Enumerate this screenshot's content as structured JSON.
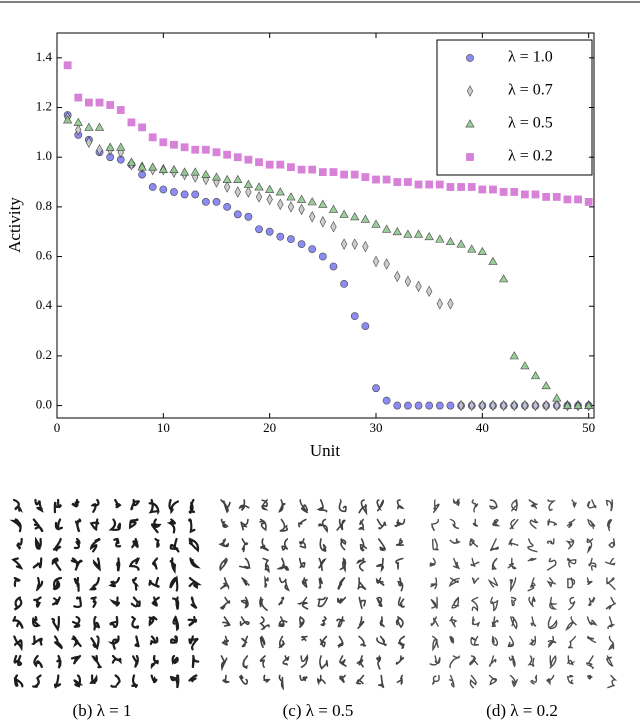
{
  "chart_data": {
    "type": "scatter",
    "xlabel": "Unit",
    "ylabel": "Activity",
    "xlim": [
      0,
      50.5
    ],
    "ylim": [
      -0.05,
      1.5
    ],
    "xticks": [
      0,
      10,
      20,
      30,
      40,
      50
    ],
    "yticks": [
      {
        "value": 0,
        "label": "0.0"
      },
      0.2,
      0.4,
      0.6,
      0.8,
      {
        "value": 1,
        "label": "1.0"
      },
      1.2,
      1.4
    ],
    "legend": "upper right",
    "x": [
      1,
      2,
      3,
      4,
      5,
      6,
      7,
      8,
      9,
      10,
      11,
      12,
      13,
      14,
      15,
      16,
      17,
      18,
      19,
      20,
      21,
      22,
      23,
      24,
      25,
      26,
      27,
      28,
      29,
      30,
      31,
      32,
      33,
      34,
      35,
      36,
      37,
      38,
      39,
      40,
      41,
      42,
      43,
      44,
      45,
      46,
      47,
      48,
      49,
      50
    ],
    "series": [
      {
        "name": "λ = 1.0",
        "color": "#7f7ff2",
        "marker": "circle",
        "values": [
          1.17,
          1.09,
          1.07,
          1.02,
          1.0,
          0.99,
          0.97,
          0.93,
          0.88,
          0.87,
          0.86,
          0.85,
          0.85,
          0.82,
          0.82,
          0.8,
          0.77,
          0.76,
          0.71,
          0.7,
          0.68,
          0.67,
          0.65,
          0.63,
          0.6,
          0.56,
          0.49,
          0.36,
          0.32,
          0.07,
          0.02,
          0,
          0,
          0,
          0,
          0,
          0,
          0,
          0,
          0,
          0,
          0,
          0,
          0,
          0,
          0,
          0,
          0,
          0,
          0
        ]
      },
      {
        "name": "λ = 0.7",
        "color": "#c8c8c8",
        "marker": "diamond",
        "values": [
          1.16,
          1.11,
          1.06,
          1.03,
          1.03,
          1.02,
          0.97,
          0.96,
          0.95,
          0.95,
          0.94,
          0.93,
          0.92,
          0.91,
          0.9,
          0.88,
          0.86,
          0.86,
          0.84,
          0.83,
          0.81,
          0.8,
          0.79,
          0.76,
          0.74,
          0.72,
          0.65,
          0.65,
          0.64,
          0.58,
          0.57,
          0.52,
          0.5,
          0.48,
          0.46,
          0.41,
          0.41,
          0,
          0,
          0,
          0,
          0,
          0,
          0,
          0,
          0,
          0,
          0,
          0,
          0
        ]
      },
      {
        "name": "λ = 0.5",
        "color": "#8fc88f",
        "marker": "triangle",
        "values": [
          1.15,
          1.14,
          1.12,
          1.12,
          1.04,
          1.04,
          0.98,
          0.96,
          0.96,
          0.95,
          0.95,
          0.94,
          0.94,
          0.93,
          0.92,
          0.91,
          0.91,
          0.89,
          0.88,
          0.87,
          0.86,
          0.84,
          0.83,
          0.82,
          0.81,
          0.79,
          0.77,
          0.76,
          0.75,
          0.73,
          0.71,
          0.7,
          0.69,
          0.69,
          0.68,
          0.67,
          0.66,
          0.65,
          0.63,
          0.62,
          0.58,
          0.51,
          0.2,
          0.16,
          0.12,
          0.08,
          0.03,
          0,
          0,
          0
        ]
      },
      {
        "name": "λ = 0.2",
        "color": "#d474d4",
        "marker": "square",
        "values": [
          1.37,
          1.24,
          1.22,
          1.22,
          1.21,
          1.19,
          1.14,
          1.12,
          1.08,
          1.06,
          1.05,
          1.04,
          1.03,
          1.03,
          1.02,
          1.01,
          1.0,
          0.99,
          0.98,
          0.97,
          0.97,
          0.96,
          0.95,
          0.95,
          0.94,
          0.94,
          0.93,
          0.93,
          0.92,
          0.91,
          0.91,
          0.9,
          0.9,
          0.89,
          0.89,
          0.89,
          0.88,
          0.88,
          0.88,
          0.87,
          0.87,
          0.86,
          0.86,
          0.85,
          0.85,
          0.84,
          0.84,
          0.83,
          0.83,
          0.82
        ]
      }
    ]
  },
  "panels": [
    {
      "caption": "(b) λ = 1"
    },
    {
      "caption": "(c) λ = 0.5"
    },
    {
      "caption": "(d) λ = 0.2"
    }
  ]
}
